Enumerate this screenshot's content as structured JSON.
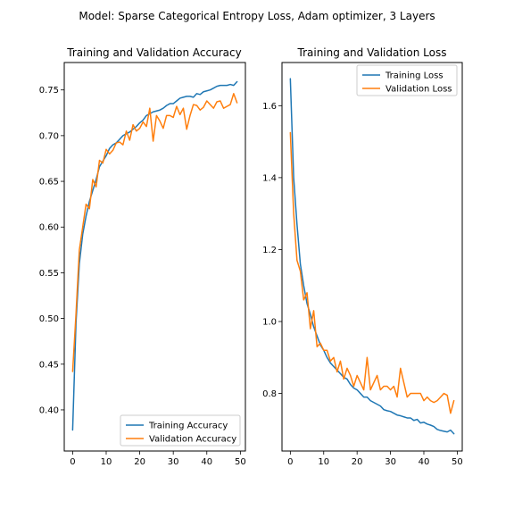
{
  "figure_title": "Model: Sparse Categorical Entropy Loss, Adam optimizer, 3 Layers",
  "chart_data": [
    {
      "type": "line",
      "title": "Training and Validation Accuracy",
      "xlabel": "",
      "ylabel": "",
      "xlim": [
        -2.5,
        51.5
      ],
      "ylim": [
        0.355,
        0.78
      ],
      "xticks": [
        0,
        10,
        20,
        30,
        40,
        50
      ],
      "yticks": [
        0.4,
        0.45,
        0.5,
        0.55,
        0.6,
        0.65,
        0.7,
        0.75
      ],
      "ytick_labels": [
        "0.40",
        "0.45",
        "0.50",
        "0.55",
        "0.60",
        "0.65",
        "0.70",
        "0.75"
      ],
      "legend_position": "lower-right",
      "x": [
        0,
        1,
        2,
        3,
        4,
        5,
        6,
        7,
        8,
        9,
        10,
        11,
        12,
        13,
        14,
        15,
        16,
        17,
        18,
        19,
        20,
        21,
        22,
        23,
        24,
        25,
        26,
        27,
        28,
        29,
        30,
        31,
        32,
        33,
        34,
        35,
        36,
        37,
        38,
        39,
        40,
        41,
        42,
        43,
        44,
        45,
        46,
        47,
        48,
        49
      ],
      "series": [
        {
          "name": "Training Accuracy",
          "color": "#1f77b4",
          "values": [
            0.378,
            0.495,
            0.56,
            0.592,
            0.612,
            0.628,
            0.64,
            0.652,
            0.666,
            0.672,
            0.678,
            0.686,
            0.69,
            0.692,
            0.696,
            0.7,
            0.702,
            0.704,
            0.707,
            0.71,
            0.714,
            0.717,
            0.722,
            0.724,
            0.726,
            0.727,
            0.728,
            0.73,
            0.733,
            0.735,
            0.735,
            0.738,
            0.741,
            0.742,
            0.743,
            0.743,
            0.742,
            0.746,
            0.745,
            0.748,
            0.749,
            0.75,
            0.752,
            0.754,
            0.755,
            0.755,
            0.755,
            0.756,
            0.755,
            0.759
          ]
        },
        {
          "name": "Validation Accuracy",
          "color": "#ff7f0e",
          "values": [
            0.442,
            0.505,
            0.575,
            0.6,
            0.625,
            0.62,
            0.652,
            0.644,
            0.673,
            0.67,
            0.685,
            0.68,
            0.684,
            0.692,
            0.693,
            0.69,
            0.705,
            0.695,
            0.712,
            0.705,
            0.708,
            0.715,
            0.71,
            0.73,
            0.694,
            0.722,
            0.716,
            0.708,
            0.722,
            0.722,
            0.72,
            0.732,
            0.723,
            0.73,
            0.707,
            0.722,
            0.734,
            0.733,
            0.728,
            0.731,
            0.738,
            0.734,
            0.73,
            0.737,
            0.738,
            0.73,
            0.732,
            0.734,
            0.746,
            0.736
          ]
        }
      ]
    },
    {
      "type": "line",
      "title": "Training and Validation Loss",
      "xlabel": "",
      "ylabel": "",
      "xlim": [
        -2.5,
        51.5
      ],
      "ylim": [
        0.64,
        1.72
      ],
      "xticks": [
        0,
        10,
        20,
        30,
        40,
        50
      ],
      "yticks": [
        0.8,
        1.0,
        1.2,
        1.4,
        1.6
      ],
      "ytick_labels": [
        "0.8",
        "1.0",
        "1.2",
        "1.4",
        "1.6"
      ],
      "legend_position": "upper-right",
      "x": [
        0,
        1,
        2,
        3,
        4,
        5,
        6,
        7,
        8,
        9,
        10,
        11,
        12,
        13,
        14,
        15,
        16,
        17,
        18,
        19,
        20,
        21,
        22,
        23,
        24,
        25,
        26,
        27,
        28,
        29,
        30,
        31,
        32,
        33,
        34,
        35,
        36,
        37,
        38,
        39,
        40,
        41,
        42,
        43,
        44,
        45,
        46,
        47,
        48,
        49
      ],
      "series": [
        {
          "name": "Training Loss",
          "color": "#1f77b4",
          "values": [
            1.675,
            1.4,
            1.27,
            1.16,
            1.1,
            1.05,
            1.02,
            0.985,
            0.96,
            0.935,
            0.92,
            0.9,
            0.885,
            0.875,
            0.865,
            0.855,
            0.845,
            0.84,
            0.825,
            0.815,
            0.81,
            0.8,
            0.79,
            0.79,
            0.78,
            0.775,
            0.77,
            0.765,
            0.755,
            0.752,
            0.75,
            0.745,
            0.74,
            0.738,
            0.735,
            0.732,
            0.732,
            0.725,
            0.728,
            0.718,
            0.72,
            0.715,
            0.712,
            0.708,
            0.7,
            0.697,
            0.695,
            0.693,
            0.698,
            0.688
          ]
        },
        {
          "name": "Validation Loss",
          "color": "#ff7f0e",
          "values": [
            1.525,
            1.3,
            1.17,
            1.14,
            1.06,
            1.08,
            0.98,
            1.03,
            0.93,
            0.94,
            0.92,
            0.92,
            0.89,
            0.9,
            0.86,
            0.89,
            0.84,
            0.87,
            0.85,
            0.82,
            0.85,
            0.83,
            0.81,
            0.9,
            0.81,
            0.83,
            0.85,
            0.81,
            0.82,
            0.82,
            0.81,
            0.82,
            0.79,
            0.87,
            0.83,
            0.79,
            0.8,
            0.8,
            0.8,
            0.8,
            0.78,
            0.79,
            0.78,
            0.775,
            0.78,
            0.79,
            0.8,
            0.795,
            0.745,
            0.78
          ]
        }
      ]
    }
  ]
}
